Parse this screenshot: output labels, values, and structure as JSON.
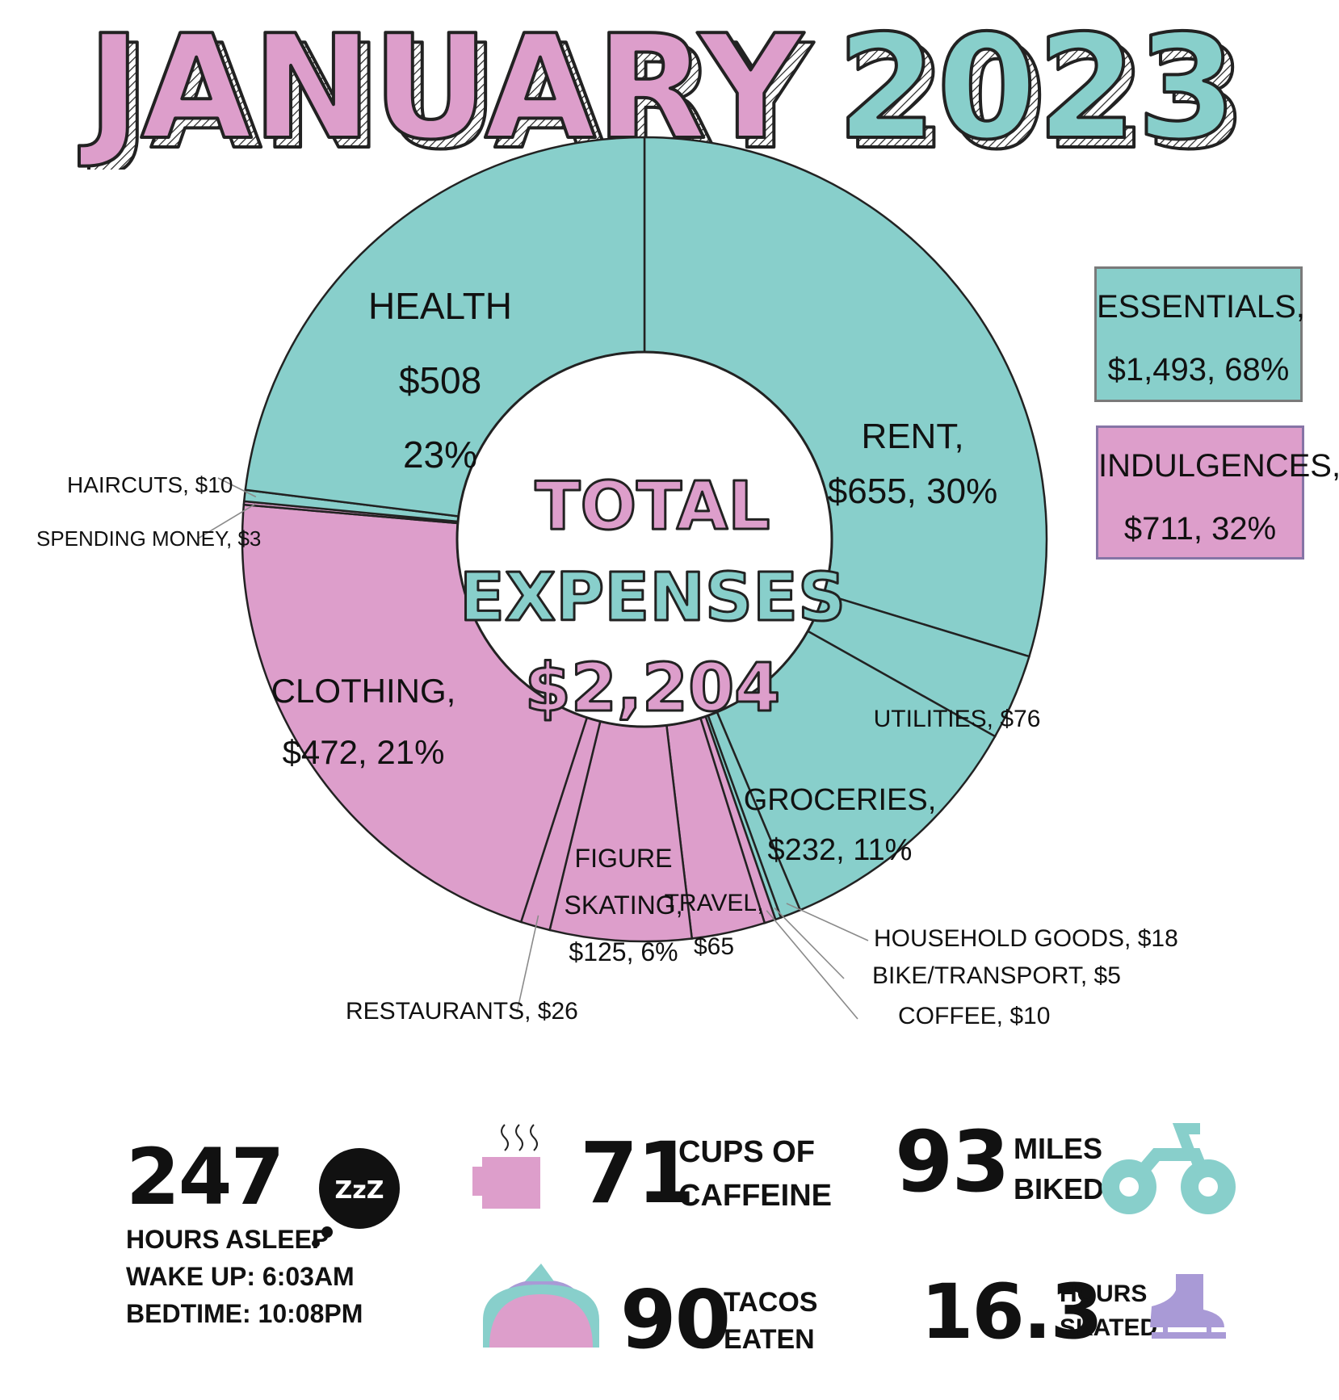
{
  "header": {
    "month": "JANUARY",
    "year": "2023"
  },
  "colors": {
    "essentials": "#88cfcb",
    "indulgences": "#dd9ecb",
    "skate": "#a99ad6",
    "outline": "#222222"
  },
  "chart_data": {
    "type": "pie",
    "variant": "donut",
    "center": {
      "line1": "TOTAL",
      "line2": "EXPENSES",
      "line3": "$2,204"
    },
    "total": 2204,
    "slices": [
      {
        "label": "RENT,",
        "value_text": "$655, 30%",
        "value": 655,
        "group": "essentials"
      },
      {
        "label": "UTILITIES, $76",
        "value": 76,
        "group": "essentials"
      },
      {
        "label": "GROCERIES,",
        "value_text": "$232, 11%",
        "value": 232,
        "group": "essentials"
      },
      {
        "label": "HOUSEHOLD GOODS, $18",
        "value": 18,
        "group": "essentials"
      },
      {
        "label": "BIKE/TRANSPORT, $5",
        "value": 5,
        "group": "essentials"
      },
      {
        "label": "COFFEE, $10",
        "value": 10,
        "group": "indulgences"
      },
      {
        "label": "TRAVEL,",
        "value_text": "$65",
        "value": 65,
        "group": "indulgences"
      },
      {
        "label": "FIGURE SKATING,",
        "value_text": "$125, 6%",
        "value": 125,
        "group": "indulgences"
      },
      {
        "label": "RESTAURANTS, $26",
        "value": 26,
        "group": "indulgences"
      },
      {
        "label": "CLOTHING,",
        "value_text": "$472, 21%",
        "value": 472,
        "group": "indulgences"
      },
      {
        "label": "SPENDING MONEY, $3",
        "value": 3,
        "group": "indulgences"
      },
      {
        "label": "HAIRCUTS, $10",
        "value": 10,
        "group": "essentials"
      },
      {
        "label": "HEALTH",
        "value_text": "$508",
        "pct_text": "23%",
        "value": 508,
        "group": "essentials"
      }
    ],
    "legend": [
      {
        "line1": "ESSENTIALS,",
        "line2": "$1,493, 68%",
        "value": 1493,
        "group": "essentials"
      },
      {
        "line1": "INDULGENCES,",
        "line2": "$711, 32%",
        "value": 711,
        "group": "indulgences"
      }
    ],
    "legend_position": "right"
  },
  "stats": {
    "sleep": {
      "value": "247",
      "label": "HOURS ASLEEP",
      "wake": "WAKE UP:  6:03AM",
      "bed": "BEDTIME: 10:08PM",
      "icon_text": "ZzZ",
      "icon": "sleep-bubble-icon"
    },
    "caffeine": {
      "value": "71",
      "line1": "CUPS OF",
      "line2": "CAFFEINE",
      "icon": "coffee-cup-icon"
    },
    "biked": {
      "value": "93",
      "line1": "MILES",
      "line2": "BIKED",
      "icon": "bicycle-icon"
    },
    "tacos": {
      "value": "90",
      "line1": "TACOS",
      "line2": "EATEN",
      "icon": "taco-icon"
    },
    "skated": {
      "value": "16.3",
      "line1": "HOURS",
      "line2": "SKATED",
      "icon": "ice-skate-icon"
    }
  }
}
